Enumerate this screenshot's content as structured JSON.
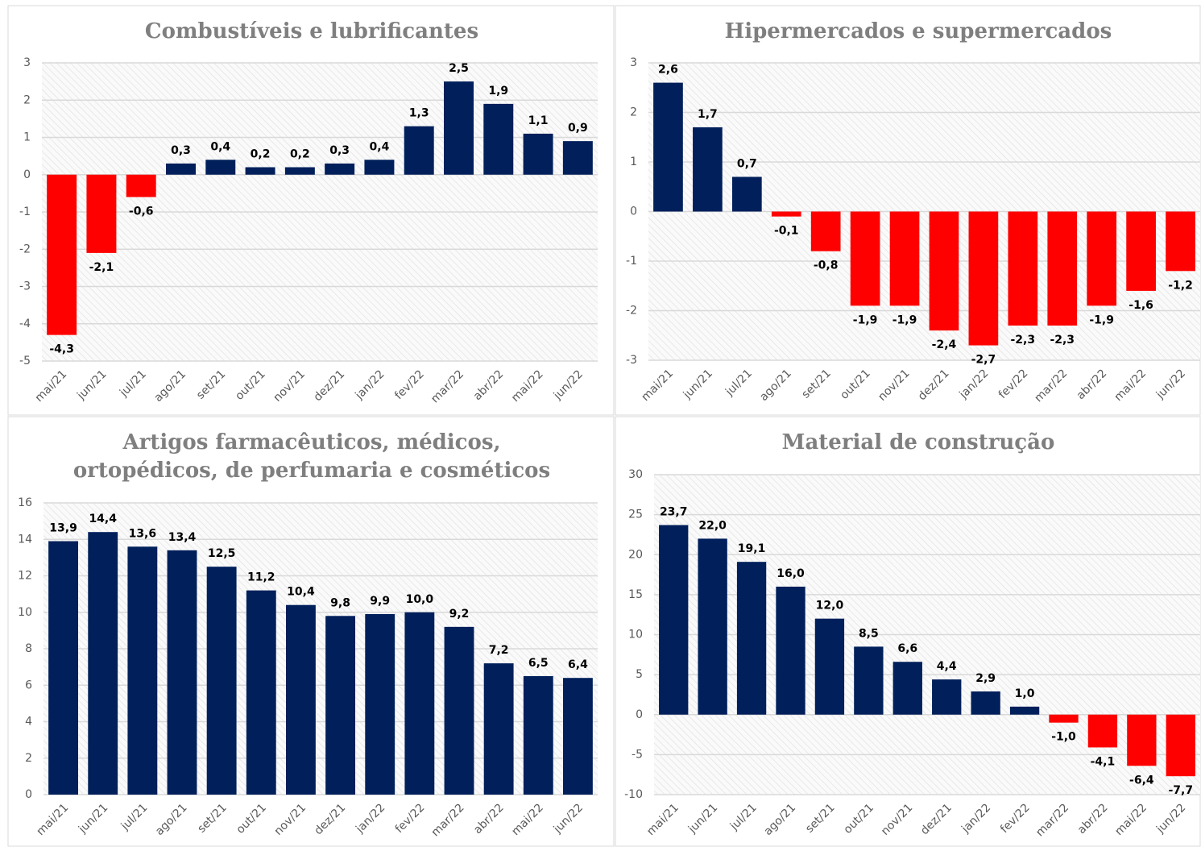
{
  "chart_data": [
    {
      "type": "bar",
      "title": [
        "Combustíveis e lubrificantes"
      ],
      "categories": [
        "mai/21",
        "jun/21",
        "jul/21",
        "ago/21",
        "set/21",
        "out/21",
        "nov/21",
        "dez/21",
        "jan/22",
        "fev/22",
        "mar/22",
        "abr/22",
        "mai/22",
        "jun/22"
      ],
      "values": [
        -4.3,
        -2.1,
        -0.6,
        0.3,
        0.4,
        0.2,
        0.2,
        0.3,
        0.4,
        1.3,
        2.5,
        1.9,
        1.1,
        0.9
      ],
      "value_labels": [
        "-4,3",
        "-2,1",
        "-0,6",
        "0,3",
        "0,4",
        "0,2",
        "0,2",
        "0,3",
        "0,4",
        "1,3",
        "2,5",
        "1,9",
        "1,1",
        "0,9"
      ],
      "color": "#001f5b",
      "negative_color": "#ff0000",
      "ylim": [
        -5,
        3
      ],
      "yticks": [
        -5,
        -4,
        -3,
        -2,
        -1,
        0,
        1,
        2,
        3
      ],
      "grid": true
    },
    {
      "type": "bar",
      "title": [
        "Hipermercados e supermercados"
      ],
      "categories": [
        "mai/21",
        "jun/21",
        "jul/21",
        "ago/21",
        "set/21",
        "out/21",
        "nov/21",
        "dez/21",
        "jan/22",
        "fev/22",
        "mar/22",
        "abr/22",
        "mai/22",
        "jun/22"
      ],
      "values": [
        2.6,
        1.7,
        0.7,
        -0.1,
        -0.8,
        -1.9,
        -1.9,
        -2.4,
        -2.7,
        -2.3,
        -2.3,
        -1.9,
        -1.6,
        -1.2
      ],
      "value_labels": [
        "2,6",
        "1,7",
        "0,7",
        "-0,1",
        "-0,8",
        "-1,9",
        "-1,9",
        "-2,4",
        "-2,7",
        "-2,3",
        "-2,3",
        "-1,9",
        "-1,6",
        "-1,2"
      ],
      "color": "#001f5b",
      "negative_color": "#ff0000",
      "ylim": [
        -3,
        3
      ],
      "yticks": [
        -3,
        -2,
        -1,
        0,
        1,
        2,
        3
      ],
      "grid": true
    },
    {
      "type": "bar",
      "title": [
        "Artigos farmacêuticos, médicos,",
        "ortopédicos, de perfumaria e cosméticos"
      ],
      "categories": [
        "mai/21",
        "jun/21",
        "jul/21",
        "ago/21",
        "set/21",
        "out/21",
        "nov/21",
        "dez/21",
        "jan/22",
        "fev/22",
        "mar/22",
        "abr/22",
        "mai/22",
        "jun/22"
      ],
      "values": [
        13.9,
        14.4,
        13.6,
        13.4,
        12.5,
        11.2,
        10.4,
        9.8,
        9.9,
        10.0,
        9.2,
        7.2,
        6.5,
        6.4
      ],
      "value_labels": [
        "13,9",
        "14,4",
        "13,6",
        "13,4",
        "12,5",
        "11,2",
        "10,4",
        "9,8",
        "9,9",
        "10,0",
        "9,2",
        "7,2",
        "6,5",
        "6,4"
      ],
      "color": "#001f5b",
      "negative_color": "#ff0000",
      "ylim": [
        0,
        16
      ],
      "yticks": [
        0,
        2,
        4,
        6,
        8,
        10,
        12,
        14,
        16
      ],
      "grid": true
    },
    {
      "type": "bar",
      "title": [
        "Material de construção"
      ],
      "categories": [
        "mai/21",
        "jun/21",
        "jul/21",
        "ago/21",
        "set/21",
        "out/21",
        "nov/21",
        "dez/21",
        "jan/22",
        "fev/22",
        "mar/22",
        "abr/22",
        "mai/22",
        "jun/22"
      ],
      "values": [
        23.7,
        22.0,
        19.1,
        16.0,
        12.0,
        8.5,
        6.6,
        4.4,
        2.9,
        1.0,
        -1.0,
        -4.1,
        -6.4,
        -7.7
      ],
      "value_labels": [
        "23,7",
        "22,0",
        "19,1",
        "16,0",
        "12,0",
        "8,5",
        "6,6",
        "4,4",
        "2,9",
        "1,0",
        "-1,0",
        "-4,1",
        "-6,4",
        "-7,7"
      ],
      "color": "#001f5b",
      "negative_color": "#ff0000",
      "ylim": [
        -10,
        30
      ],
      "yticks": [
        -10,
        -5,
        0,
        5,
        10,
        15,
        20,
        25,
        30
      ],
      "grid": true
    }
  ]
}
